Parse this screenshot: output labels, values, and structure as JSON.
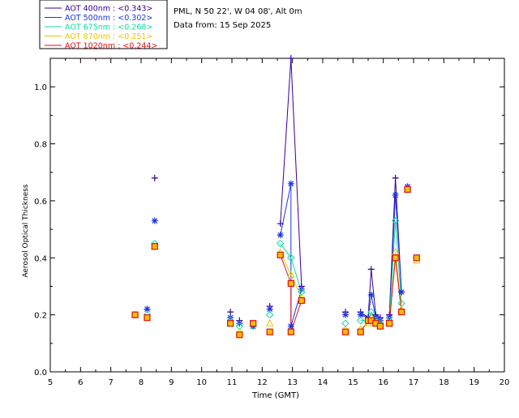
{
  "header": {
    "station": "PML, N 50 22', W 04 08', Alt 0m",
    "date_line": "Data from: 15 Sep 2025"
  },
  "chart_data": {
    "type": "scatter",
    "title": "",
    "xlabel": "Time (GMT)",
    "ylabel": "Aerosol Optical Thickness",
    "xlim": [
      5,
      20
    ],
    "ylim": [
      0,
      1.1
    ],
    "xticks": [
      5,
      6,
      7,
      8,
      9,
      10,
      11,
      12,
      13,
      14,
      15,
      16,
      17,
      18,
      19,
      20
    ],
    "yticks": [
      "0.0",
      "0.2",
      "0.4",
      "0.6",
      "0.8",
      "1.0"
    ],
    "grid": false,
    "legend_position": "top-left",
    "series": [
      {
        "name": "AOT  400nm : <0.343>",
        "color": "#330099",
        "marker": "plus",
        "points": [
          [
            7.8,
            0.2
          ],
          [
            8.2,
            0.22
          ],
          [
            8.45,
            0.68
          ],
          [
            10.95,
            0.21
          ],
          [
            11.25,
            0.18
          ],
          [
            11.7,
            0.16
          ],
          [
            12.25,
            0.23
          ],
          [
            12.6,
            0.52
          ],
          [
            12.95,
            1.1
          ],
          [
            13.3,
            0.3
          ],
          [
            14.75,
            0.21
          ],
          [
            15.25,
            0.21
          ],
          [
            15.5,
            0.19
          ],
          [
            15.6,
            0.36
          ],
          [
            15.75,
            0.2
          ],
          [
            15.9,
            0.19
          ],
          [
            16.2,
            0.2
          ],
          [
            16.4,
            0.68
          ],
          [
            16.6,
            0.28
          ],
          [
            16.8,
            0.65
          ],
          [
            17.1,
            0.4
          ]
        ]
      },
      {
        "name": "AOT  500nm : <0.302>",
        "color": "#1a35e6",
        "marker": "asterisk",
        "points": [
          [
            7.8,
            0.2
          ],
          [
            8.2,
            0.22
          ],
          [
            8.45,
            0.53
          ],
          [
            10.95,
            0.19
          ],
          [
            11.25,
            0.17
          ],
          [
            11.7,
            0.16
          ],
          [
            12.25,
            0.22
          ],
          [
            12.6,
            0.48
          ],
          [
            12.95,
            0.66
          ],
          [
            12.95,
            0.16
          ],
          [
            13.3,
            0.29
          ],
          [
            14.75,
            0.2
          ],
          [
            15.25,
            0.2
          ],
          [
            15.5,
            0.19
          ],
          [
            15.6,
            0.27
          ],
          [
            15.75,
            0.19
          ],
          [
            15.9,
            0.18
          ],
          [
            16.2,
            0.19
          ],
          [
            16.4,
            0.62
          ],
          [
            16.6,
            0.28
          ],
          [
            16.8,
            0.65
          ],
          [
            17.1,
            0.4
          ]
        ]
      },
      {
        "name": "AOT  675nm : <0.268>",
        "color": "#10d8a0",
        "marker": "diamond",
        "points": [
          [
            7.8,
            0.2
          ],
          [
            8.2,
            0.2
          ],
          [
            8.45,
            0.45
          ],
          [
            10.95,
            0.18
          ],
          [
            11.25,
            0.16
          ],
          [
            11.7,
            0.16
          ],
          [
            12.25,
            0.2
          ],
          [
            12.6,
            0.45
          ],
          [
            12.95,
            0.4
          ],
          [
            13.3,
            0.28
          ],
          [
            14.75,
            0.17
          ],
          [
            15.25,
            0.18
          ],
          [
            15.5,
            0.18
          ],
          [
            15.6,
            0.21
          ],
          [
            15.75,
            0.18
          ],
          [
            15.9,
            0.17
          ],
          [
            16.2,
            0.18
          ],
          [
            16.4,
            0.53
          ],
          [
            16.6,
            0.24
          ],
          [
            16.8,
            0.64
          ],
          [
            17.1,
            0.4
          ]
        ]
      },
      {
        "name": "AOT  870nm : <0.251>",
        "color": "#e8c800",
        "marker": "triangle",
        "points": [
          [
            7.8,
            0.2
          ],
          [
            8.2,
            0.19
          ],
          [
            8.45,
            0.44
          ],
          [
            10.95,
            0.17
          ],
          [
            11.25,
            0.14
          ],
          [
            11.7,
            0.17
          ],
          [
            12.25,
            0.17
          ],
          [
            12.6,
            0.42
          ],
          [
            12.95,
            0.34
          ],
          [
            13.3,
            0.26
          ],
          [
            14.75,
            0.15
          ],
          [
            15.25,
            0.15
          ],
          [
            15.5,
            0.17
          ],
          [
            15.6,
            0.19
          ],
          [
            15.75,
            0.17
          ],
          [
            15.9,
            0.16
          ],
          [
            16.2,
            0.17
          ],
          [
            16.4,
            0.42
          ],
          [
            16.6,
            0.22
          ],
          [
            16.8,
            0.64
          ],
          [
            17.1,
            0.39
          ]
        ]
      },
      {
        "name": "AOT 1020nm : <0.244>",
        "color": "#e01010",
        "marker": "square",
        "points": [
          [
            7.8,
            0.2
          ],
          [
            8.2,
            0.19
          ],
          [
            8.45,
            0.44
          ],
          [
            10.95,
            0.17
          ],
          [
            11.25,
            0.13
          ],
          [
            11.7,
            0.17
          ],
          [
            12.25,
            0.14
          ],
          [
            12.6,
            0.41
          ],
          [
            12.95,
            0.31
          ],
          [
            12.95,
            0.14
          ],
          [
            13.3,
            0.25
          ],
          [
            14.75,
            0.14
          ],
          [
            15.25,
            0.14
          ],
          [
            15.5,
            0.18
          ],
          [
            15.6,
            0.18
          ],
          [
            15.75,
            0.17
          ],
          [
            15.9,
            0.16
          ],
          [
            16.2,
            0.17
          ],
          [
            16.4,
            0.4
          ],
          [
            16.6,
            0.21
          ],
          [
            16.8,
            0.64
          ],
          [
            17.1,
            0.4
          ]
        ]
      }
    ]
  }
}
